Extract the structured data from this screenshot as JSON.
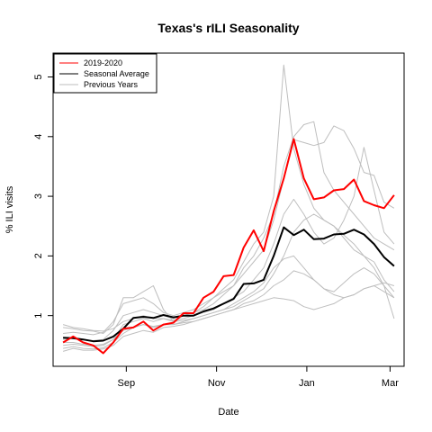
{
  "chart_data": {
    "type": "line",
    "title": "Texas's rILI Seasonality",
    "xlabel": "Date",
    "ylabel": "% ILI visits",
    "x_ticks": [
      {
        "label": "Sep",
        "week": 7.3
      },
      {
        "label": "Nov",
        "week": 16.3
      },
      {
        "label": "Jan",
        "week": 25.3
      },
      {
        "label": "Mar",
        "week": 33.6
      }
    ],
    "y_ticks": [
      1,
      2,
      3,
      4,
      5
    ],
    "xlim": [
      0,
      35
    ],
    "ylim": [
      0.15,
      5.4
    ],
    "legend": {
      "position": "top-left",
      "entries": [
        {
          "label": "2019-2020",
          "color": "#ff0000"
        },
        {
          "label": "Seasonal Average",
          "color": "#000000"
        },
        {
          "label": "Previous Years",
          "color": "#bebebe"
        }
      ]
    },
    "series": [
      {
        "name": "2019-2020",
        "color": "#ff0000",
        "width": 2,
        "values": [
          0.55,
          0.65,
          0.55,
          0.5,
          0.37,
          0.55,
          0.78,
          0.8,
          0.9,
          0.75,
          0.85,
          0.88,
          1.04,
          1.04,
          1.3,
          1.4,
          1.66,
          1.68,
          2.14,
          2.43,
          2.08,
          2.75,
          3.3,
          3.96,
          3.3,
          2.95,
          2.98,
          3.1,
          3.12,
          3.28,
          2.92,
          2.85,
          2.8,
          3.02
        ]
      },
      {
        "name": "Seasonal Average",
        "color": "#000000",
        "width": 2,
        "values": [
          0.63,
          0.62,
          0.6,
          0.57,
          0.58,
          0.65,
          0.78,
          0.96,
          0.98,
          0.96,
          1.01,
          0.97,
          1.0,
          1.0,
          1.07,
          1.12,
          1.2,
          1.28,
          1.53,
          1.54,
          1.6,
          2.0,
          2.48,
          2.35,
          2.44,
          2.28,
          2.29,
          2.36,
          2.37,
          2.44,
          2.36,
          2.2,
          1.98,
          1.83
        ]
      },
      {
        "color": "#bebebe",
        "width": 1,
        "values": [
          0.8,
          0.78,
          0.75,
          0.74,
          0.7,
          0.85,
          1.3,
          1.3,
          1.4,
          1.5,
          1.1,
          0.9,
          1.0,
          1.05,
          1.15,
          1.3,
          1.45,
          1.6,
          1.9,
          2.2,
          2.4,
          3.0,
          5.2,
          3.8,
          3.2,
          2.8,
          2.6,
          2.5,
          2.3,
          2.1,
          2.0,
          1.9,
          1.6,
          1.4
        ]
      },
      {
        "color": "#bebebe",
        "width": 1,
        "values": [
          0.7,
          0.72,
          0.7,
          0.68,
          0.72,
          0.9,
          1.2,
          1.25,
          1.3,
          1.2,
          1.05,
          1.0,
          1.05,
          1.1,
          1.2,
          1.3,
          1.4,
          1.5,
          1.8,
          2.0,
          2.3,
          2.7,
          3.5,
          4.0,
          4.2,
          4.25,
          3.4,
          3.1,
          2.9,
          2.7,
          2.5,
          2.3,
          2.2,
          2.1
        ]
      },
      {
        "color": "#bebebe",
        "width": 1,
        "values": [
          0.6,
          0.62,
          0.6,
          0.58,
          0.6,
          0.75,
          1.0,
          1.05,
          1.1,
          1.05,
          1.0,
          0.95,
          1.0,
          1.05,
          1.1,
          1.2,
          1.35,
          1.5,
          1.7,
          1.9,
          2.1,
          2.6,
          3.3,
          3.95,
          3.9,
          3.85,
          3.9,
          4.18,
          4.1,
          3.8,
          3.4,
          3.35,
          2.9,
          2.8
        ]
      },
      {
        "color": "#bebebe",
        "width": 1,
        "values": [
          0.5,
          0.52,
          0.5,
          0.48,
          0.5,
          0.6,
          0.85,
          0.9,
          0.95,
          0.9,
          0.95,
          0.92,
          0.95,
          1.0,
          1.05,
          1.1,
          1.2,
          1.3,
          1.4,
          1.6,
          1.8,
          2.2,
          2.7,
          2.95,
          2.7,
          2.4,
          2.2,
          2.3,
          2.6,
          3.0,
          3.82,
          3.1,
          2.4,
          2.2
        ]
      },
      {
        "color": "#bebebe",
        "width": 1,
        "values": [
          0.45,
          0.48,
          0.45,
          0.44,
          0.46,
          0.55,
          0.7,
          0.8,
          0.85,
          0.8,
          0.85,
          0.85,
          0.9,
          0.95,
          1.0,
          1.05,
          1.1,
          1.2,
          1.3,
          1.4,
          1.55,
          1.8,
          1.95,
          2.0,
          1.8,
          1.6,
          1.45,
          1.4,
          1.55,
          1.7,
          1.8,
          1.7,
          1.5,
          1.3
        ]
      },
      {
        "color": "#bebebe",
        "width": 1,
        "values": [
          0.4,
          0.45,
          0.42,
          0.42,
          0.44,
          0.5,
          0.65,
          0.7,
          0.75,
          0.72,
          0.8,
          0.82,
          0.85,
          0.9,
          0.95,
          1.0,
          1.05,
          1.1,
          1.2,
          1.25,
          1.35,
          1.5,
          1.6,
          1.75,
          1.7,
          1.6,
          1.45,
          1.35,
          1.3,
          1.35,
          1.45,
          1.5,
          1.4,
          1.3
        ]
      },
      {
        "color": "#bebebe",
        "width": 1,
        "values": [
          0.85,
          0.8,
          0.78,
          0.75,
          0.74,
          0.78,
          0.9,
          0.95,
          1.0,
          0.95,
          0.95,
          0.9,
          0.92,
          0.95,
          1.0,
          1.05,
          1.1,
          1.15,
          1.25,
          1.35,
          1.45,
          1.7,
          2.0,
          2.4,
          2.6,
          2.7,
          2.6,
          2.5,
          2.35,
          2.2,
          2.0,
          1.8,
          1.5,
          0.95
        ]
      },
      {
        "color": "#bebebe",
        "width": 1,
        "values": [
          0.55,
          0.55,
          0.52,
          0.5,
          0.52,
          0.6,
          0.75,
          0.8,
          0.85,
          0.82,
          0.85,
          0.85,
          0.88,
          0.9,
          0.95,
          1.0,
          1.05,
          1.1,
          1.15,
          1.2,
          1.25,
          1.3,
          1.28,
          1.25,
          1.15,
          1.1,
          1.15,
          1.2,
          1.3,
          1.35,
          1.45,
          1.5,
          1.55,
          1.5
        ]
      }
    ]
  }
}
